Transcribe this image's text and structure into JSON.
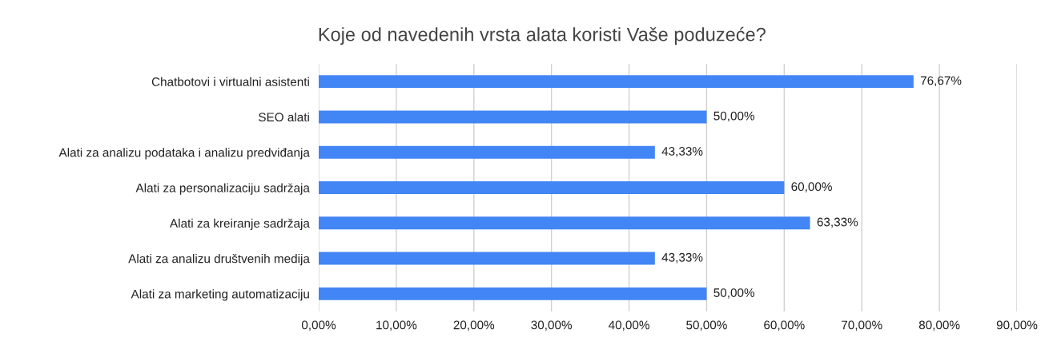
{
  "chart_data": {
    "type": "bar",
    "orientation": "horizontal",
    "title": "Koje od navedenih vrsta alata koristi Vaše poduzeće?",
    "categories": [
      "Chatbotovi i virtualni asistenti",
      "SEO alati",
      "Alati za analizu podataka i analizu predviđanja",
      "Alati za personalizaciju sadržaja",
      "Alati za kreiranje sadržaja",
      "Alati za analizu društvenih medija",
      "Alati za marketing automatizaciju"
    ],
    "values": [
      76.67,
      50.0,
      43.33,
      60.0,
      63.33,
      43.33,
      50.0
    ],
    "value_labels": [
      "76,67%",
      "50,00%",
      "43,33%",
      "60,00%",
      "63,33%",
      "43,33%",
      "50,00%"
    ],
    "color": "#4285f4",
    "xlim": [
      0,
      90
    ],
    "xticks": [
      {
        "value": 0,
        "label": "0,00%"
      },
      {
        "value": 10,
        "label": "10,00%"
      },
      {
        "value": 20,
        "label": "20,00%"
      },
      {
        "value": 30,
        "label": "30,00%"
      },
      {
        "value": 40,
        "label": "40,00%"
      },
      {
        "value": 50,
        "label": "50,00%"
      },
      {
        "value": 60,
        "label": "60,00%"
      },
      {
        "value": 70,
        "label": "70,00%"
      },
      {
        "value": 80,
        "label": "80,00%"
      },
      {
        "value": 90,
        "label": "90,00%"
      }
    ],
    "grid": "x"
  }
}
